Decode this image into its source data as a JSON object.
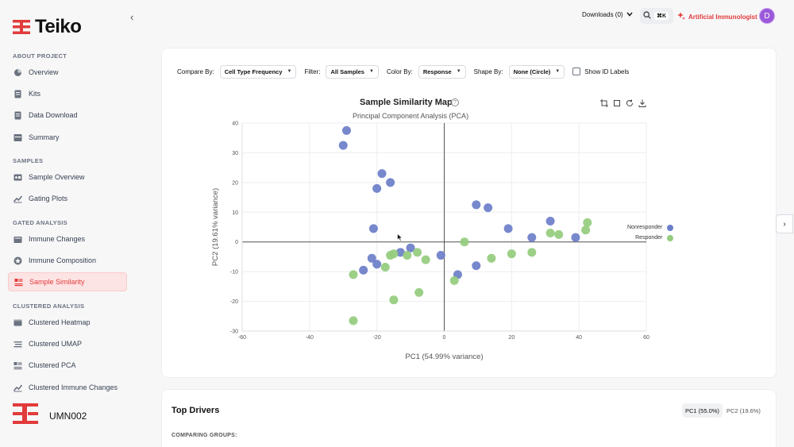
{
  "brand": {
    "name": "Teiko",
    "accent": "#e23b3b"
  },
  "sidebar": {
    "sections": [
      {
        "title": "ABOUT PROJECT",
        "items": [
          {
            "label": "Overview",
            "icon": "pie-chart-icon"
          },
          {
            "label": "Kits",
            "icon": "document-icon"
          },
          {
            "label": "Data Download",
            "icon": "document-icon"
          },
          {
            "label": "Summary",
            "icon": "table-icon"
          }
        ]
      },
      {
        "title": "SAMPLES",
        "items": [
          {
            "label": "Sample Overview",
            "icon": "vials-icon"
          },
          {
            "label": "Gating Plots",
            "icon": "trend-icon"
          }
        ]
      },
      {
        "title": "GATED ANALYSIS",
        "items": [
          {
            "label": "Immune Changes",
            "icon": "bar-chart-icon"
          },
          {
            "label": "Immune Composition",
            "icon": "star-icon"
          },
          {
            "label": "Sample Similarity",
            "icon": "similarity-icon",
            "active": true
          }
        ]
      },
      {
        "title": "CLUSTERED ANALYSIS",
        "items": [
          {
            "label": "Clustered Heatmap",
            "icon": "heatmap-icon"
          },
          {
            "label": "Clustered UMAP",
            "icon": "umap-icon"
          },
          {
            "label": "Clustered PCA",
            "icon": "pca-icon"
          },
          {
            "label": "Clustered Immune Changes",
            "icon": "trend-icon"
          }
        ]
      }
    ],
    "org": "UMN002"
  },
  "topbar": {
    "downloads": "Downloads (0)",
    "shortcut": "⌘K",
    "ai_label": "Artificial Immunologist",
    "avatar_letter": "D"
  },
  "controls": {
    "compare_by_label": "Compare By:",
    "compare_by_value": "Cell Type Frequency",
    "filter_label": "Filter:",
    "filter_value": "All Samples",
    "color_by_label": "Color By:",
    "color_by_value": "Response",
    "shape_by_label": "Shape By:",
    "shape_by_value": "None (Circle)",
    "show_id_labels": "Show ID Labels"
  },
  "chart_data": {
    "type": "scatter",
    "title": "Sample Similarity Map",
    "subtitle": "Principal Component Analysis (PCA)",
    "xlabel": "PC1 (54.99% variance)",
    "ylabel": "PC2 (19.61% variance)",
    "xlim": [
      -60,
      60
    ],
    "ylim": [
      -30,
      40
    ],
    "xticks": [
      -60,
      -40,
      -20,
      0,
      20,
      40,
      60
    ],
    "yticks": [
      -30,
      -20,
      -10,
      0,
      10,
      20,
      30,
      40
    ],
    "grid": true,
    "legend_position": "right",
    "series": [
      {
        "name": "Nonresponder",
        "color": "#6b7ec9",
        "points": [
          [
            -29,
            37.5
          ],
          [
            -30,
            32.5
          ],
          [
            -18.5,
            23
          ],
          [
            -20,
            18
          ],
          [
            -16,
            20
          ],
          [
            -21,
            4.5
          ],
          [
            -21.5,
            -5.5
          ],
          [
            -20,
            -7.5
          ],
          [
            -24,
            -9.5
          ],
          [
            -13,
            -3.5
          ],
          [
            -10,
            -2
          ],
          [
            -1,
            -4.5
          ],
          [
            9.5,
            12.5
          ],
          [
            13,
            11.5
          ],
          [
            19,
            4.5
          ],
          [
            26,
            1.5
          ],
          [
            31.5,
            7
          ],
          [
            39,
            1.5
          ],
          [
            9.5,
            -8
          ],
          [
            4,
            -11
          ]
        ]
      },
      {
        "name": "Responder",
        "color": "#94cc7d",
        "points": [
          [
            -27,
            -26.5
          ],
          [
            -27,
            -11
          ],
          [
            -17.5,
            -8.5
          ],
          [
            -16,
            -4.5
          ],
          [
            -15,
            -4
          ],
          [
            -11,
            -4.5
          ],
          [
            -8,
            -3.5
          ],
          [
            -5.5,
            -6
          ],
          [
            -15,
            -19.5
          ],
          [
            -7.5,
            -17
          ],
          [
            6,
            0
          ],
          [
            14,
            -5.5
          ],
          [
            20,
            -4
          ],
          [
            26,
            -3.5
          ],
          [
            31.5,
            3
          ],
          [
            34,
            2.5
          ],
          [
            42,
            4
          ],
          [
            42.5,
            6.5
          ],
          [
            3,
            -13
          ]
        ]
      }
    ]
  },
  "drivers": {
    "title": "Top Drivers",
    "comparing": "COMPARING GROUPS:",
    "tabs": [
      "PC1 (55.0%)",
      "PC2 (19.6%)"
    ]
  }
}
